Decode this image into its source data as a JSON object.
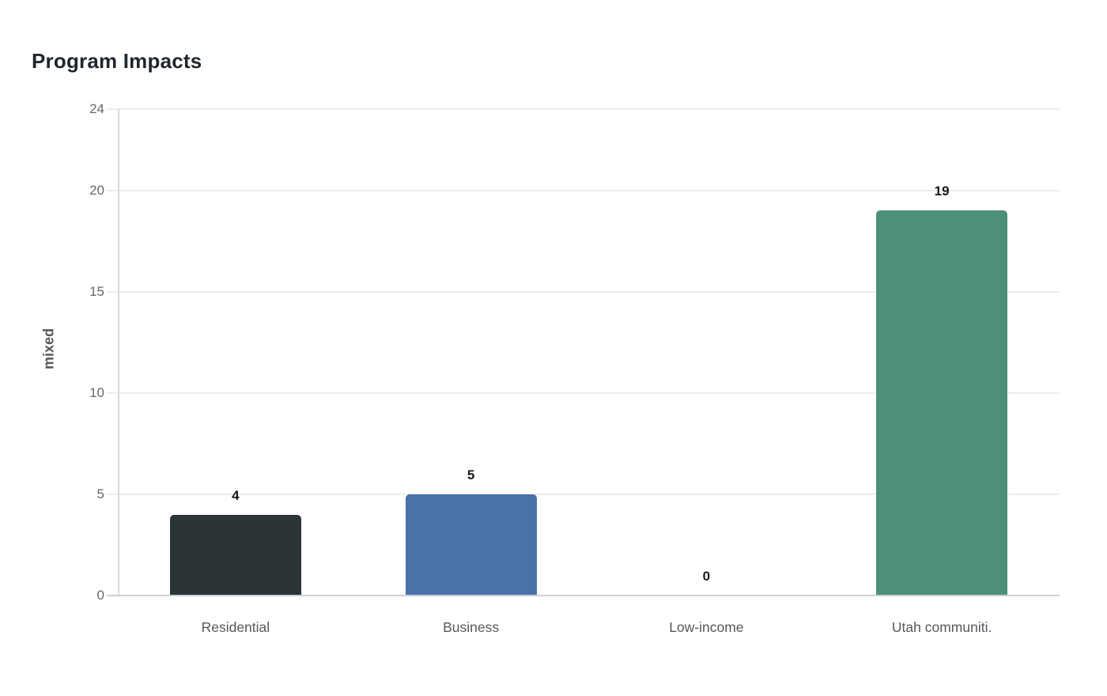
{
  "chart_data": {
    "type": "bar",
    "title": "Program Impacts",
    "xlabel": "",
    "ylabel": "mixed",
    "categories": [
      "Residential",
      "Business",
      "Low-income",
      "Utah communiti."
    ],
    "values": [
      4,
      5,
      0,
      19
    ],
    "value_labels": [
      "4",
      "5",
      "0",
      "19"
    ],
    "bar_colors": [
      "#2b3437",
      "#4b71a9",
      null,
      "#4d8f7b"
    ],
    "ylim": [
      0,
      24
    ],
    "yticks": [
      0,
      5,
      10,
      15,
      20,
      24
    ],
    "grid": true,
    "legend_position": "none"
  },
  "theme": {
    "background": "#ffffff",
    "title_color": "#20262c",
    "axis_title_color": "#54575a",
    "tick_label_color": "#63686d",
    "category_label_color": "#55585c",
    "value_label_color": "#14181c",
    "gridline_color": "#ececec",
    "axis_line_color": "#d7d9db",
    "baseline_color": "#cdd0d3"
  }
}
